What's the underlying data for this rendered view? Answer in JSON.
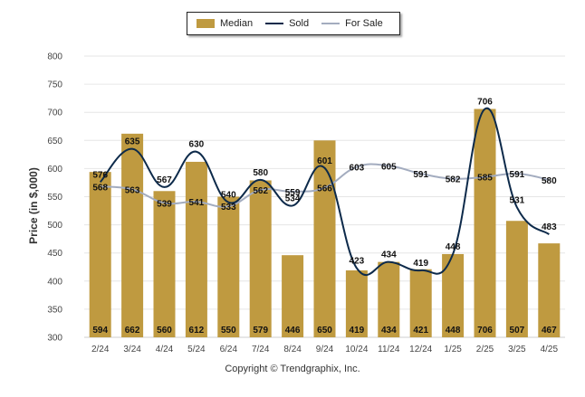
{
  "chart_data": {
    "type": "bar",
    "categories": [
      "2/24",
      "3/24",
      "4/24",
      "5/24",
      "6/24",
      "7/24",
      "8/24",
      "9/24",
      "10/24",
      "11/24",
      "12/24",
      "1/25",
      "2/25",
      "3/25",
      "4/25"
    ],
    "series": [
      {
        "name": "Median",
        "type": "bar",
        "color": "#BF9A40",
        "values": [
          594,
          662,
          560,
          612,
          550,
          579,
          446,
          650,
          419,
          434,
          421,
          448,
          706,
          507,
          467
        ]
      },
      {
        "name": "Sold",
        "type": "line",
        "color": "#0D2A4A",
        "values": [
          576,
          635,
          567,
          630,
          540,
          580,
          534,
          601,
          423,
          434,
          419,
          448,
          706,
          531,
          483
        ]
      },
      {
        "name": "For Sale",
        "type": "line",
        "color": "#A3ACBF",
        "values": [
          568,
          563,
          539,
          541,
          533,
          562,
          559,
          566,
          603,
          605,
          591,
          582,
          585,
          591,
          580
        ]
      }
    ],
    "ylabel": "Price (in $,000)",
    "ylim": [
      300,
      800
    ],
    "yticks": [
      300,
      350,
      400,
      450,
      500,
      550,
      600,
      650,
      700,
      750,
      800
    ],
    "grid": true,
    "legend_position": "top-center"
  },
  "credit": "Copyright © Trendgraphix, Inc."
}
